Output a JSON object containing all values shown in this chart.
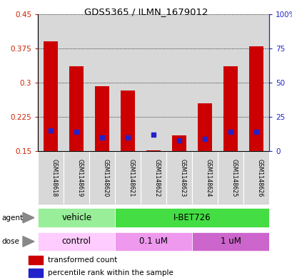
{
  "title": "GDS5365 / ILMN_1679012",
  "samples": [
    "GSM1148618",
    "GSM1148619",
    "GSM1148620",
    "GSM1148621",
    "GSM1148622",
    "GSM1148623",
    "GSM1148624",
    "GSM1148625",
    "GSM1148626"
  ],
  "red_values": [
    0.39,
    0.335,
    0.292,
    0.283,
    0.152,
    0.185,
    0.255,
    0.335,
    0.38
  ],
  "blue_percentile": [
    15,
    14,
    10,
    10,
    12,
    8,
    9,
    14,
    14
  ],
  "ylim_left": [
    0.15,
    0.45
  ],
  "ylim_right": [
    0,
    100
  ],
  "yticks_left": [
    0.15,
    0.225,
    0.3,
    0.375,
    0.45
  ],
  "yticks_right": [
    0,
    25,
    50,
    75,
    100
  ],
  "ytick_labels_right": [
    "0",
    "25",
    "50",
    "75",
    "100%"
  ],
  "bar_color": "#cc0000",
  "dot_color": "#2222cc",
  "agent_groups": [
    {
      "label": "vehicle",
      "start": 0,
      "end": 3,
      "color": "#99ee99"
    },
    {
      "label": "I-BET726",
      "start": 3,
      "end": 9,
      "color": "#44dd44"
    }
  ],
  "dose_groups": [
    {
      "label": "control",
      "start": 0,
      "end": 3,
      "color": "#ffaaff"
    },
    {
      "label": "0.1 uM",
      "start": 3,
      "end": 6,
      "color": "#ee88ee"
    },
    {
      "label": "1 uM",
      "start": 6,
      "end": 9,
      "color": "#cc66cc"
    }
  ],
  "legend_red": "transformed count",
  "legend_blue": "percentile rank within the sample"
}
